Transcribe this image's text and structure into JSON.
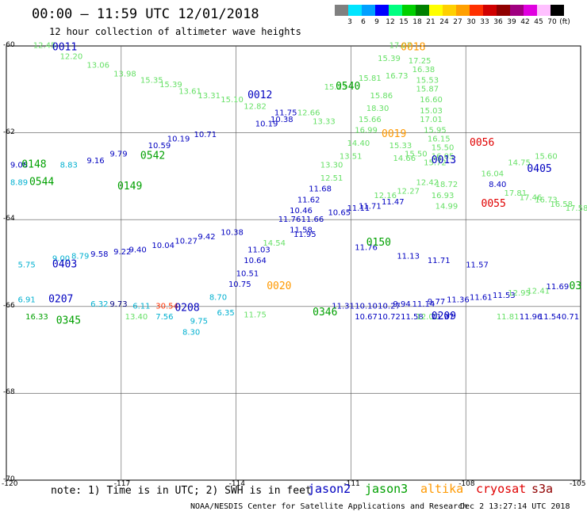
{
  "title": "00:00 – 11:59 UTC 12/01/2018",
  "subtitle": "12 hour collection of altimeter wave heights",
  "legend": {
    "unit": "(ft)",
    "bins": [
      {
        "label": "3",
        "color": "#808080"
      },
      {
        "label": "6",
        "color": "#00e5ff"
      },
      {
        "label": "9",
        "color": "#00a0ff"
      },
      {
        "label": "12",
        "color": "#0000ff"
      },
      {
        "label": "15",
        "color": "#00ff80"
      },
      {
        "label": "18",
        "color": "#00d000"
      },
      {
        "label": "21",
        "color": "#008000"
      },
      {
        "label": "24",
        "color": "#ffff00"
      },
      {
        "label": "27",
        "color": "#ffd000"
      },
      {
        "label": "30",
        "color": "#ffa000"
      },
      {
        "label": "33",
        "color": "#ff3000"
      },
      {
        "label": "36",
        "color": "#d00000"
      },
      {
        "label": "39",
        "color": "#900000"
      },
      {
        "label": "42",
        "color": "#a00080"
      },
      {
        "label": "45",
        "color": "#e000e0"
      },
      {
        "label": "70",
        "color": "#ffc0ff"
      },
      {
        "label": "",
        "color": "#000000"
      }
    ]
  },
  "axes": {
    "lon_labels": [
      "-120",
      "-117",
      "-114",
      "-111",
      "-108",
      "-105"
    ],
    "lat_labels": [
      "-60",
      "-62",
      "-64",
      "-66",
      "-68",
      "-70"
    ]
  },
  "note": "note: 1) Time is in UTC; 2) SWH is in feet",
  "satellites": [
    {
      "name": "jason2",
      "color": "#0000c0"
    },
    {
      "name": "jason3",
      "color": "#00a000"
    },
    {
      "name": "altika",
      "color": "#ff9900"
    },
    {
      "name": "cryosat",
      "color": "#e00000"
    },
    {
      "name": "s3a",
      "color": "#900000"
    }
  ],
  "credit": "NOAA/NESDIS Center for Satellite Applications and Research",
  "stamp": "Dec  2 13:27:14 UTC 2018",
  "chart_data": {
    "type": "scatter",
    "title": "00:00 – 11:59 UTC 12/01/2018",
    "subtitle": "12 hour collection of altimeter wave heights",
    "xlim": [
      -120,
      -105
    ],
    "ylim": [
      -70,
      -60
    ],
    "time_labels": [
      {
        "text": "0011",
        "lon": -118.8,
        "lat": -60.1,
        "color": "#0000c0"
      },
      {
        "text": "0012",
        "lon": -113.7,
        "lat": -61.2,
        "color": "#0000c0"
      },
      {
        "text": "0018",
        "lon": -109.7,
        "lat": -60.1,
        "color": "#ff9900"
      },
      {
        "text": "0019",
        "lon": -110.2,
        "lat": -62.1,
        "color": "#ff9900"
      },
      {
        "text": "0020",
        "lon": -113.2,
        "lat": -65.6,
        "color": "#ff9900"
      },
      {
        "text": "0013",
        "lon": -108.9,
        "lat": -62.7,
        "color": "#0000c0"
      },
      {
        "text": "0056",
        "lon": -107.9,
        "lat": -62.3,
        "color": "#e00000"
      },
      {
        "text": "0055",
        "lon": -107.6,
        "lat": -63.7,
        "color": "#e00000"
      },
      {
        "text": "0405",
        "lon": -106.4,
        "lat": -62.9,
        "color": "#0000c0"
      },
      {
        "text": "0540",
        "lon": -111.4,
        "lat": -61.0,
        "color": "#00a000"
      },
      {
        "text": "0542",
        "lon": -116.5,
        "lat": -62.6,
        "color": "#00a000"
      },
      {
        "text": "0148",
        "lon": -119.6,
        "lat": -62.8,
        "color": "#00a000"
      },
      {
        "text": "0544",
        "lon": -119.4,
        "lat": -63.2,
        "color": "#00a000"
      },
      {
        "text": "0149",
        "lon": -117.1,
        "lat": -63.3,
        "color": "#00a000"
      },
      {
        "text": "0403",
        "lon": -118.8,
        "lat": -65.1,
        "color": "#0000c0"
      },
      {
        "text": "0207",
        "lon": -118.9,
        "lat": -65.9,
        "color": "#0000c0"
      },
      {
        "text": "0345",
        "lon": -118.7,
        "lat": -66.4,
        "color": "#00a000"
      },
      {
        "text": "0208",
        "lon": -115.6,
        "lat": -66.1,
        "color": "#0000c0"
      },
      {
        "text": "0209",
        "lon": -108.9,
        "lat": -66.3,
        "color": "#0000c0"
      },
      {
        "text": "0150",
        "lon": -110.6,
        "lat": -64.6,
        "color": "#00a000"
      },
      {
        "text": "0346",
        "lon": -112.0,
        "lat": -66.2,
        "color": "#00a000"
      },
      {
        "text": "03",
        "lon": -105.3,
        "lat": -65.6,
        "color": "#00a000"
      }
    ],
    "swh_points": [
      {
        "v": 12.45,
        "lon": -119.3,
        "lat": -60.05,
        "c": "#66e066"
      },
      {
        "v": 12.2,
        "lon": -118.6,
        "lat": -60.3,
        "c": "#66e066"
      },
      {
        "v": 13.06,
        "lon": -117.9,
        "lat": -60.5,
        "c": "#66e066"
      },
      {
        "v": 13.98,
        "lon": -117.2,
        "lat": -60.7,
        "c": "#66e066"
      },
      {
        "v": 15.35,
        "lon": -116.5,
        "lat": -60.85,
        "c": "#66e066"
      },
      {
        "v": 15.39,
        "lon": -116.0,
        "lat": -60.95,
        "c": "#66e066"
      },
      {
        "v": 13.61,
        "lon": -115.5,
        "lat": -61.1,
        "c": "#66e066"
      },
      {
        "v": 13.31,
        "lon": -115.0,
        "lat": -61.2,
        "c": "#66e066"
      },
      {
        "v": 15.1,
        "lon": -114.4,
        "lat": -61.3,
        "c": "#66e066"
      },
      {
        "v": 12.82,
        "lon": -113.8,
        "lat": -61.45,
        "c": "#66e066"
      },
      {
        "v": 11.75,
        "lon": -113.0,
        "lat": -61.6,
        "c": "#0000c0"
      },
      {
        "v": 10.19,
        "lon": -113.5,
        "lat": -61.85,
        "c": "#0000c0"
      },
      {
        "v": 10.38,
        "lon": -113.1,
        "lat": -61.75,
        "c": "#0000c0"
      },
      {
        "v": 12.66,
        "lon": -112.4,
        "lat": -61.6,
        "c": "#66e066"
      },
      {
        "v": 13.33,
        "lon": -112.0,
        "lat": -61.8,
        "c": "#66e066"
      },
      {
        "v": 15.23,
        "lon": -111.7,
        "lat": -61.0,
        "c": "#66e066"
      },
      {
        "v": 15.81,
        "lon": -110.8,
        "lat": -60.8,
        "c": "#66e066"
      },
      {
        "v": 17.07,
        "lon": -110.0,
        "lat": -60.05,
        "c": "#66e066"
      },
      {
        "v": 15.39,
        "lon": -110.3,
        "lat": -60.35,
        "c": "#66e066"
      },
      {
        "v": 16.73,
        "lon": -110.1,
        "lat": -60.75,
        "c": "#66e066"
      },
      {
        "v": 15.86,
        "lon": -110.5,
        "lat": -61.2,
        "c": "#66e066"
      },
      {
        "v": 18.3,
        "lon": -110.6,
        "lat": -61.5,
        "c": "#66e066"
      },
      {
        "v": 15.66,
        "lon": -110.8,
        "lat": -61.75,
        "c": "#66e066"
      },
      {
        "v": 16.99,
        "lon": -110.9,
        "lat": -62.0,
        "c": "#66e066"
      },
      {
        "v": 14.4,
        "lon": -111.1,
        "lat": -62.3,
        "c": "#66e066"
      },
      {
        "v": 13.3,
        "lon": -111.8,
        "lat": -62.8,
        "c": "#66e066"
      },
      {
        "v": 12.51,
        "lon": -111.8,
        "lat": -63.1,
        "c": "#66e066"
      },
      {
        "v": 13.51,
        "lon": -111.3,
        "lat": -62.6,
        "c": "#66e066"
      },
      {
        "v": 15.33,
        "lon": -110.0,
        "lat": -62.35,
        "c": "#66e066"
      },
      {
        "v": 15.5,
        "lon": -109.6,
        "lat": -62.55,
        "c": "#66e066"
      },
      {
        "v": 15.72,
        "lon": -109.1,
        "lat": -62.75,
        "c": "#66e066"
      },
      {
        "v": 17.25,
        "lon": -109.5,
        "lat": -60.4,
        "c": "#66e066"
      },
      {
        "v": 16.38,
        "lon": -109.4,
        "lat": -60.6,
        "c": "#66e066"
      },
      {
        "v": 15.53,
        "lon": -109.3,
        "lat": -60.85,
        "c": "#66e066"
      },
      {
        "v": 15.87,
        "lon": -109.3,
        "lat": -61.05,
        "c": "#66e066"
      },
      {
        "v": 16.6,
        "lon": -109.2,
        "lat": -61.3,
        "c": "#66e066"
      },
      {
        "v": 15.03,
        "lon": -109.2,
        "lat": -61.55,
        "c": "#66e066"
      },
      {
        "v": 17.01,
        "lon": -109.2,
        "lat": -61.75,
        "c": "#66e066"
      },
      {
        "v": 15.95,
        "lon": -109.1,
        "lat": -62.0,
        "c": "#66e066"
      },
      {
        "v": 16.15,
        "lon": -109.0,
        "lat": -62.2,
        "c": "#66e066"
      },
      {
        "v": 15.5,
        "lon": -108.9,
        "lat": -62.4,
        "c": "#66e066"
      },
      {
        "v": 16.05,
        "lon": -108.9,
        "lat": -62.6,
        "c": "#66e066"
      },
      {
        "v": 16.04,
        "lon": -107.6,
        "lat": -63.0,
        "c": "#66e066"
      },
      {
        "v": 14.75,
        "lon": -106.9,
        "lat": -62.75,
        "c": "#66e066"
      },
      {
        "v": 15.6,
        "lon": -106.2,
        "lat": -62.6,
        "c": "#66e066"
      },
      {
        "v": 18.72,
        "lon": -108.8,
        "lat": -63.25,
        "c": "#66e066"
      },
      {
        "v": 8.4,
        "lon": -107.4,
        "lat": -63.25,
        "c": "#0000c0"
      },
      {
        "v": 17.81,
        "lon": -107.0,
        "lat": -63.45,
        "c": "#66e066"
      },
      {
        "v": 17.46,
        "lon": -106.6,
        "lat": -63.55,
        "c": "#66e066"
      },
      {
        "v": 16.73,
        "lon": -106.2,
        "lat": -63.6,
        "c": "#66e066"
      },
      {
        "v": 16.58,
        "lon": -105.8,
        "lat": -63.7,
        "c": "#66e066"
      },
      {
        "v": 17.58,
        "lon": -105.4,
        "lat": -63.8,
        "c": "#66e066"
      },
      {
        "v": 16.93,
        "lon": -108.9,
        "lat": -63.5,
        "c": "#66e066"
      },
      {
        "v": 14.99,
        "lon": -108.8,
        "lat": -63.75,
        "c": "#66e066"
      },
      {
        "v": 12.16,
        "lon": -110.4,
        "lat": -63.5,
        "c": "#66e066"
      },
      {
        "v": 12.27,
        "lon": -109.8,
        "lat": -63.4,
        "c": "#66e066"
      },
      {
        "v": 12.42,
        "lon": -109.3,
        "lat": -63.2,
        "c": "#66e066"
      },
      {
        "v": 14.66,
        "lon": -109.9,
        "lat": -62.65,
        "c": "#66e066"
      },
      {
        "v": 9.08,
        "lon": -119.9,
        "lat": -62.8,
        "c": "#0000c0"
      },
      {
        "v": 8.83,
        "lon": -118.6,
        "lat": -62.8,
        "c": "#00b0d0"
      },
      {
        "v": 9.16,
        "lon": -117.9,
        "lat": -62.7,
        "c": "#0000c0"
      },
      {
        "v": 9.79,
        "lon": -117.3,
        "lat": -62.55,
        "c": "#0000c0"
      },
      {
        "v": 10.59,
        "lon": -116.3,
        "lat": -62.35,
        "c": "#0000c0"
      },
      {
        "v": 10.19,
        "lon": -115.8,
        "lat": -62.2,
        "c": "#0000c0"
      },
      {
        "v": 10.71,
        "lon": -115.1,
        "lat": -62.1,
        "c": "#0000c0"
      },
      {
        "v": 8.89,
        "lon": -119.9,
        "lat": -63.2,
        "c": "#00b0d0"
      },
      {
        "v": 11.68,
        "lon": -112.1,
        "lat": -63.35,
        "c": "#0000c0"
      },
      {
        "v": 11.62,
        "lon": -112.4,
        "lat": -63.6,
        "c": "#0000c0"
      },
      {
        "v": 10.46,
        "lon": -112.6,
        "lat": -63.85,
        "c": "#0000c0"
      },
      {
        "v": 10.65,
        "lon": -111.6,
        "lat": -63.9,
        "c": "#0000c0"
      },
      {
        "v": 11.71,
        "lon": -110.8,
        "lat": -63.75,
        "c": "#0000c0"
      },
      {
        "v": 11.47,
        "lon": -110.2,
        "lat": -63.65,
        "c": "#0000c0"
      },
      {
        "v": 11.11,
        "lon": -111.1,
        "lat": -63.8,
        "c": "#0000c0"
      },
      {
        "v": 14.54,
        "lon": -113.3,
        "lat": -64.6,
        "c": "#66e066"
      },
      {
        "v": 11.03,
        "lon": -113.7,
        "lat": -64.75,
        "c": "#0000c0"
      },
      {
        "v": 10.64,
        "lon": -113.8,
        "lat": -65.0,
        "c": "#0000c0"
      },
      {
        "v": 10.51,
        "lon": -114.0,
        "lat": -65.3,
        "c": "#0000c0"
      },
      {
        "v": 10.75,
        "lon": -114.2,
        "lat": -65.55,
        "c": "#0000c0"
      },
      {
        "v": 10.38,
        "lon": -114.4,
        "lat": -64.35,
        "c": "#0000c0"
      },
      {
        "v": 9.42,
        "lon": -115.0,
        "lat": -64.45,
        "c": "#0000c0"
      },
      {
        "v": 10.27,
        "lon": -115.6,
        "lat": -64.55,
        "c": "#0000c0"
      },
      {
        "v": 10.04,
        "lon": -116.2,
        "lat": -64.65,
        "c": "#0000c0"
      },
      {
        "v": 9.4,
        "lon": -116.8,
        "lat": -64.75,
        "c": "#0000c0"
      },
      {
        "v": 9.22,
        "lon": -117.2,
        "lat": -64.8,
        "c": "#0000c0"
      },
      {
        "v": 9.58,
        "lon": -117.8,
        "lat": -64.85,
        "c": "#0000c0"
      },
      {
        "v": 8.79,
        "lon": -118.3,
        "lat": -64.9,
        "c": "#00b0d0"
      },
      {
        "v": 9.0,
        "lon": -118.8,
        "lat": -64.95,
        "c": "#00b0d0"
      },
      {
        "v": 5.75,
        "lon": -119.7,
        "lat": -65.1,
        "c": "#00b0d0"
      },
      {
        "v": 6.91,
        "lon": -119.7,
        "lat": -65.9,
        "c": "#00b0d0"
      },
      {
        "v": 6.32,
        "lon": -117.8,
        "lat": -66.0,
        "c": "#00b0d0"
      },
      {
        "v": 9.73,
        "lon": -117.3,
        "lat": -66.0,
        "c": "#000080"
      },
      {
        "v": 6.11,
        "lon": -116.7,
        "lat": -66.05,
        "c": "#00b0d0"
      },
      {
        "v": 30.54,
        "lon": -116.1,
        "lat": -66.05,
        "c": "#ff3000"
      },
      {
        "v": 16.33,
        "lon": -119.5,
        "lat": -66.3,
        "c": "#00a000"
      },
      {
        "v": 13.4,
        "lon": -116.9,
        "lat": -66.3,
        "c": "#66e066"
      },
      {
        "v": 7.56,
        "lon": -116.1,
        "lat": -66.3,
        "c": "#00b0d0"
      },
      {
        "v": 8.7,
        "lon": -114.7,
        "lat": -65.85,
        "c": "#00b0d0"
      },
      {
        "v": 9.75,
        "lon": -115.2,
        "lat": -66.4,
        "c": "#00b0d0"
      },
      {
        "v": 8.3,
        "lon": -115.4,
        "lat": -66.65,
        "c": "#00b0d0"
      },
      {
        "v": 6.35,
        "lon": -114.5,
        "lat": -66.2,
        "c": "#00b0d0"
      },
      {
        "v": 11.75,
        "lon": -113.8,
        "lat": -66.25,
        "c": "#66e066"
      },
      {
        "v": 11.31,
        "lon": -111.5,
        "lat": -66.05,
        "c": "#0000c0"
      },
      {
        "v": 10.1,
        "lon": -110.9,
        "lat": -66.05,
        "c": "#0000c0"
      },
      {
        "v": 10.27,
        "lon": -110.3,
        "lat": -66.05,
        "c": "#0000c0"
      },
      {
        "v": 9.94,
        "lon": -109.9,
        "lat": -66.0,
        "c": "#0000c0"
      },
      {
        "v": 11.14,
        "lon": -109.4,
        "lat": -66.0,
        "c": "#0000c0"
      },
      {
        "v": 9.77,
        "lon": -109.0,
        "lat": -65.95,
        "c": "#0000c0"
      },
      {
        "v": 11.36,
        "lon": -108.5,
        "lat": -65.9,
        "c": "#0000c0"
      },
      {
        "v": 11.61,
        "lon": -107.9,
        "lat": -65.85,
        "c": "#0000c0"
      },
      {
        "v": 11.53,
        "lon": -107.3,
        "lat": -65.8,
        "c": "#0000c0"
      },
      {
        "v": 12.95,
        "lon": -106.9,
        "lat": -65.75,
        "c": "#66e066"
      },
      {
        "v": 12.41,
        "lon": -106.4,
        "lat": -65.7,
        "c": "#66e066"
      },
      {
        "v": 11.69,
        "lon": -105.9,
        "lat": -65.6,
        "c": "#0000c0"
      },
      {
        "v": 10.67,
        "lon": -110.9,
        "lat": -66.3,
        "c": "#0000c0"
      },
      {
        "v": 10.72,
        "lon": -110.3,
        "lat": -66.3,
        "c": "#0000c0"
      },
      {
        "v": 11.58,
        "lon": -109.7,
        "lat": -66.3,
        "c": "#0000c0"
      },
      {
        "v": 12.01,
        "lon": -109.3,
        "lat": -66.3,
        "c": "#66e066"
      },
      {
        "v": 11.97,
        "lon": -108.9,
        "lat": -66.3,
        "c": "#0000c0"
      },
      {
        "v": 11.81,
        "lon": -107.2,
        "lat": -66.3,
        "c": "#66e066"
      },
      {
        "v": 11.96,
        "lon": -106.6,
        "lat": -66.3,
        "c": "#0000c0"
      },
      {
        "v": 11.54,
        "lon": -106.1,
        "lat": -66.3,
        "c": "#0000c0"
      },
      {
        "v": 0.71,
        "lon": -105.5,
        "lat": -66.3,
        "c": "#0000c0"
      },
      {
        "v": 11.57,
        "lon": -108.0,
        "lat": -65.1,
        "c": "#0000c0"
      },
      {
        "v": 11.71,
        "lon": -109.0,
        "lat": -65.0,
        "c": "#0000c0"
      },
      {
        "v": 11.13,
        "lon": -109.8,
        "lat": -64.9,
        "c": "#0000c0"
      },
      {
        "v": 11.76,
        "lon": -110.9,
        "lat": -64.7,
        "c": "#0000c0"
      },
      {
        "v": 11.95,
        "lon": -112.5,
        "lat": -64.4,
        "c": "#0000c0"
      },
      {
        "v": 11.76,
        "lon": -112.9,
        "lat": -64.05,
        "c": "#0000c0"
      },
      {
        "v": 11.66,
        "lon": -112.3,
        "lat": -64.05,
        "c": "#0000c0"
      },
      {
        "v": 11.58,
        "lon": -112.6,
        "lat": -64.3,
        "c": "#0000c0"
      }
    ]
  }
}
